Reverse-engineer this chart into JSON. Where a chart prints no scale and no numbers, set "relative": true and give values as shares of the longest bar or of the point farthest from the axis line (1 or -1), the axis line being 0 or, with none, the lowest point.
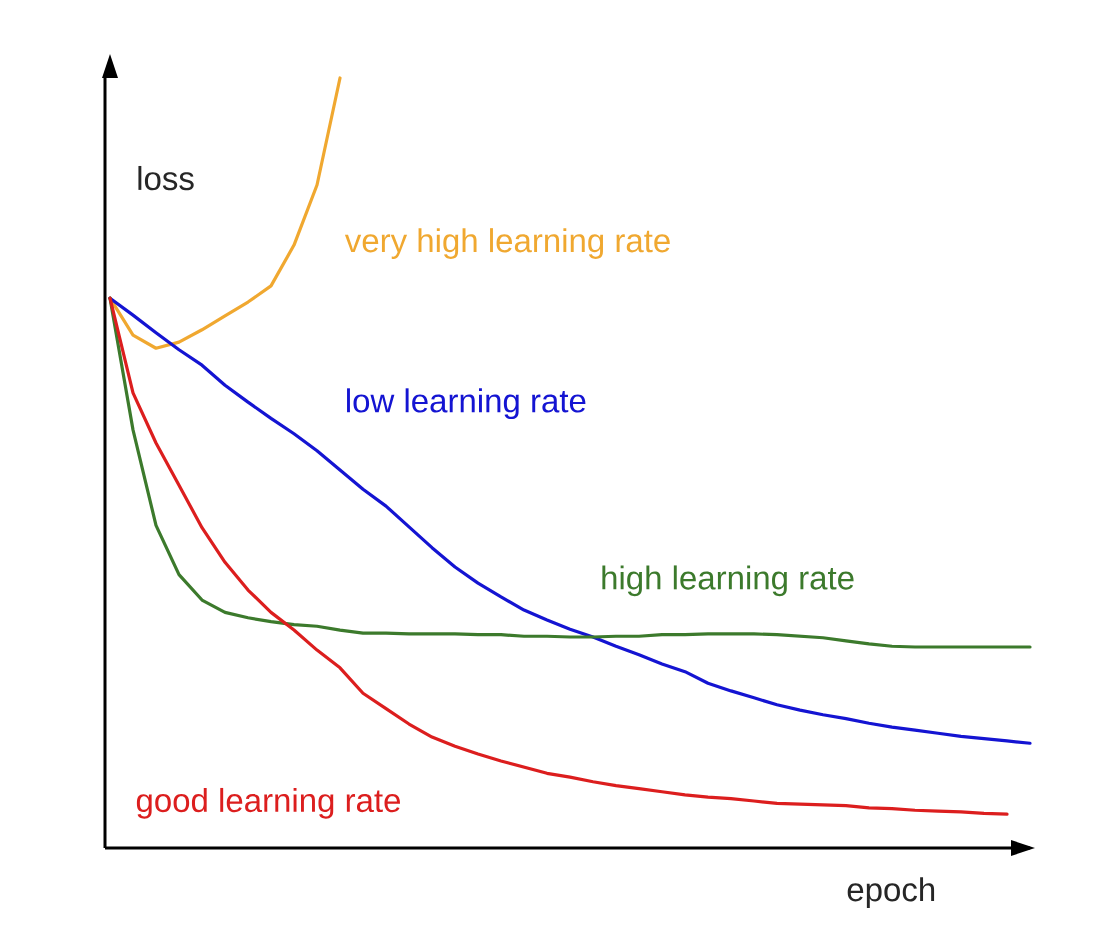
{
  "chart_data": {
    "type": "line",
    "relative": true,
    "xlabel": "epoch",
    "ylabel": "loss",
    "categories": [
      null,
      null,
      null,
      null,
      null,
      null,
      null,
      null,
      null,
      null,
      null,
      null,
      null,
      null,
      null,
      null,
      null,
      null,
      null,
      null,
      null,
      null,
      null,
      null,
      null,
      null,
      null,
      null,
      null,
      null,
      null,
      null,
      null,
      null,
      null,
      null,
      null,
      null,
      null,
      null,
      null
    ],
    "series": [
      {
        "name": "very high learning rate",
        "color": "#f0a830",
        "values": [
          0.714,
          0.666,
          0.649,
          0.657,
          0.673,
          0.691,
          0.709,
          0.73,
          0.783,
          0.861,
          1.0,
          null,
          null,
          null,
          null,
          null,
          null,
          null,
          null,
          null,
          null,
          null,
          null,
          null,
          null,
          null,
          null,
          null,
          null,
          null,
          null,
          null,
          null,
          null,
          null,
          null,
          null,
          null,
          null,
          null,
          null
        ]
      },
      {
        "name": "low learning rate",
        "color": "#1414d2",
        "values": [
          0.714,
          0.692,
          0.669,
          0.647,
          0.627,
          0.601,
          0.579,
          0.558,
          0.538,
          0.516,
          0.491,
          0.466,
          0.444,
          0.417,
          0.39,
          0.365,
          0.344,
          0.326,
          0.309,
          0.296,
          0.284,
          0.274,
          0.262,
          0.251,
          0.239,
          0.229,
          0.214,
          0.204,
          0.195,
          0.186,
          0.179,
          0.173,
          0.168,
          0.162,
          0.157,
          0.153,
          0.149,
          0.145,
          0.142,
          0.139,
          0.136
        ]
      },
      {
        "name": "high learning rate",
        "color": "#3c7a2c",
        "values": [
          0.714,
          0.543,
          0.419,
          0.355,
          0.322,
          0.306,
          0.299,
          0.294,
          0.29,
          0.288,
          0.283,
          0.279,
          0.279,
          0.278,
          0.278,
          0.278,
          0.277,
          0.277,
          0.275,
          0.275,
          0.274,
          0.274,
          0.275,
          0.275,
          0.277,
          0.277,
          0.278,
          0.278,
          0.278,
          0.277,
          0.275,
          0.273,
          0.269,
          0.265,
          0.262,
          0.261,
          0.261,
          0.261,
          0.261,
          0.261,
          0.261
        ]
      },
      {
        "name": "good learning rate",
        "color": "#dc1e1e",
        "values": [
          0.714,
          0.591,
          0.526,
          0.471,
          0.416,
          0.371,
          0.335,
          0.306,
          0.283,
          0.257,
          0.234,
          0.201,
          0.181,
          0.161,
          0.144,
          0.132,
          0.122,
          0.113,
          0.105,
          0.097,
          0.092,
          0.086,
          0.081,
          0.077,
          0.073,
          0.069,
          0.066,
          0.064,
          0.061,
          0.058,
          0.057,
          0.056,
          0.055,
          0.052,
          0.051,
          0.049,
          0.048,
          0.047,
          0.045,
          0.044,
          null
        ]
      }
    ]
  }
}
